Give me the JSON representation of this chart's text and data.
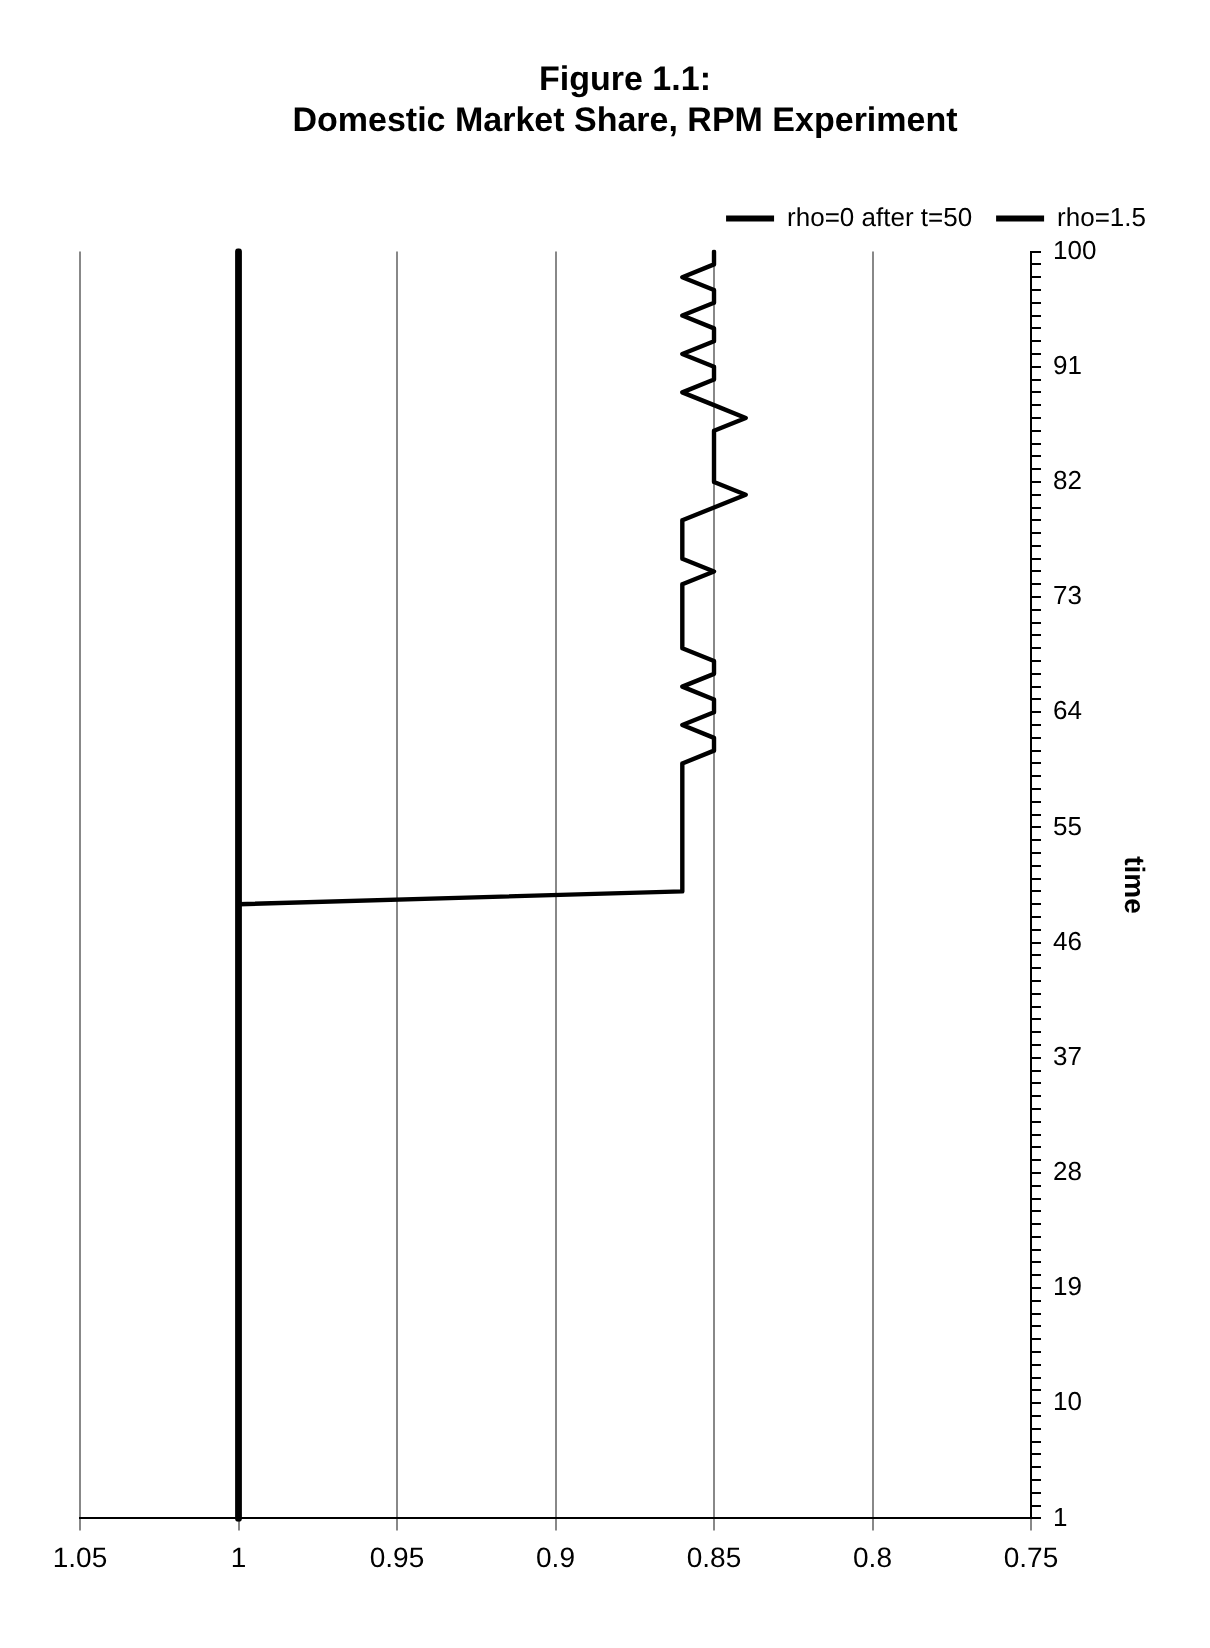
{
  "chart_data": {
    "type": "line",
    "orientation": "horizontal",
    "title": "Figure 1.1:\nDomestic Market Share, RPM Experiment",
    "ylabel": "time",
    "categories": [
      "100",
      null,
      null,
      null,
      null,
      null,
      null,
      null,
      null,
      "91",
      null,
      null,
      null,
      null,
      null,
      null,
      null,
      null,
      "82",
      null,
      null,
      null,
      null,
      null,
      null,
      null,
      null,
      "73",
      null,
      null,
      null,
      null,
      null,
      null,
      null,
      null,
      "64",
      null,
      null,
      null,
      null,
      null,
      null,
      null,
      null,
      "55",
      null,
      null,
      null,
      null,
      null,
      null,
      null,
      null,
      "46",
      null,
      null,
      null,
      null,
      null,
      null,
      null,
      null,
      "37",
      null,
      null,
      null,
      null,
      null,
      null,
      null,
      null,
      "28",
      null,
      null,
      null,
      null,
      null,
      null,
      null,
      null,
      "19",
      null,
      null,
      null,
      null,
      null,
      null,
      null,
      null,
      "10",
      null,
      null,
      null,
      null,
      null,
      null,
      null,
      null,
      "1"
    ],
    "series": [
      {
        "name": "rho=0 after t=50",
        "color": "#000000",
        "values": [
          0.85,
          0.85,
          0.86,
          0.85,
          0.85,
          0.86,
          0.85,
          0.85,
          0.86,
          0.85,
          0.85,
          0.86,
          0.85,
          0.84,
          0.85,
          0.85,
          0.85,
          0.85,
          0.85,
          0.84,
          0.85,
          0.86,
          0.86,
          0.86,
          0.86,
          0.85,
          0.86,
          0.86,
          0.86,
          0.86,
          0.86,
          0.86,
          0.85,
          0.85,
          0.86,
          0.85,
          0.85,
          0.86,
          0.85,
          0.85,
          0.86,
          0.86,
          0.86,
          0.86,
          0.86,
          0.86,
          0.86,
          0.86,
          0.86,
          0.86,
          0.86,
          1,
          1,
          1,
          1,
          1,
          1,
          1,
          1,
          1,
          1,
          1,
          1,
          1,
          1,
          1,
          1,
          1,
          1,
          1,
          1,
          1,
          1,
          1,
          1,
          1,
          1,
          1,
          1,
          1,
          1,
          1,
          1,
          1,
          1,
          1,
          1,
          1,
          1,
          1,
          1,
          1,
          1,
          1,
          1,
          1,
          1,
          1,
          1,
          1
        ]
      },
      {
        "name": "rho=1.5",
        "color": "#000000",
        "values": [
          1,
          1,
          1,
          1,
          1,
          1,
          1,
          1,
          1,
          1,
          1,
          1,
          1,
          1,
          1,
          1,
          1,
          1,
          1,
          1,
          1,
          1,
          1,
          1,
          1,
          1,
          1,
          1,
          1,
          1,
          1,
          1,
          1,
          1,
          1,
          1,
          1,
          1,
          1,
          1,
          1,
          1,
          1,
          1,
          1,
          1,
          1,
          1,
          1,
          1,
          1,
          1,
          1,
          1,
          1,
          1,
          1,
          1,
          1,
          1,
          1,
          1,
          1,
          1,
          1,
          1,
          1,
          1,
          1,
          1,
          1,
          1,
          1,
          1,
          1,
          1,
          1,
          1,
          1,
          1,
          1,
          1,
          1,
          1,
          1,
          1,
          1,
          1,
          1,
          1,
          1,
          1,
          1,
          1,
          1,
          1,
          1,
          1,
          1,
          1
        ]
      }
    ],
    "xlim": [
      1.05,
      0.75
    ],
    "xticks": [
      1.05,
      1,
      0.95,
      0.9,
      0.85,
      0.8,
      0.75
    ],
    "grid": "x",
    "legend": "top right",
    "marker": "none",
    "line_style": "solid"
  }
}
